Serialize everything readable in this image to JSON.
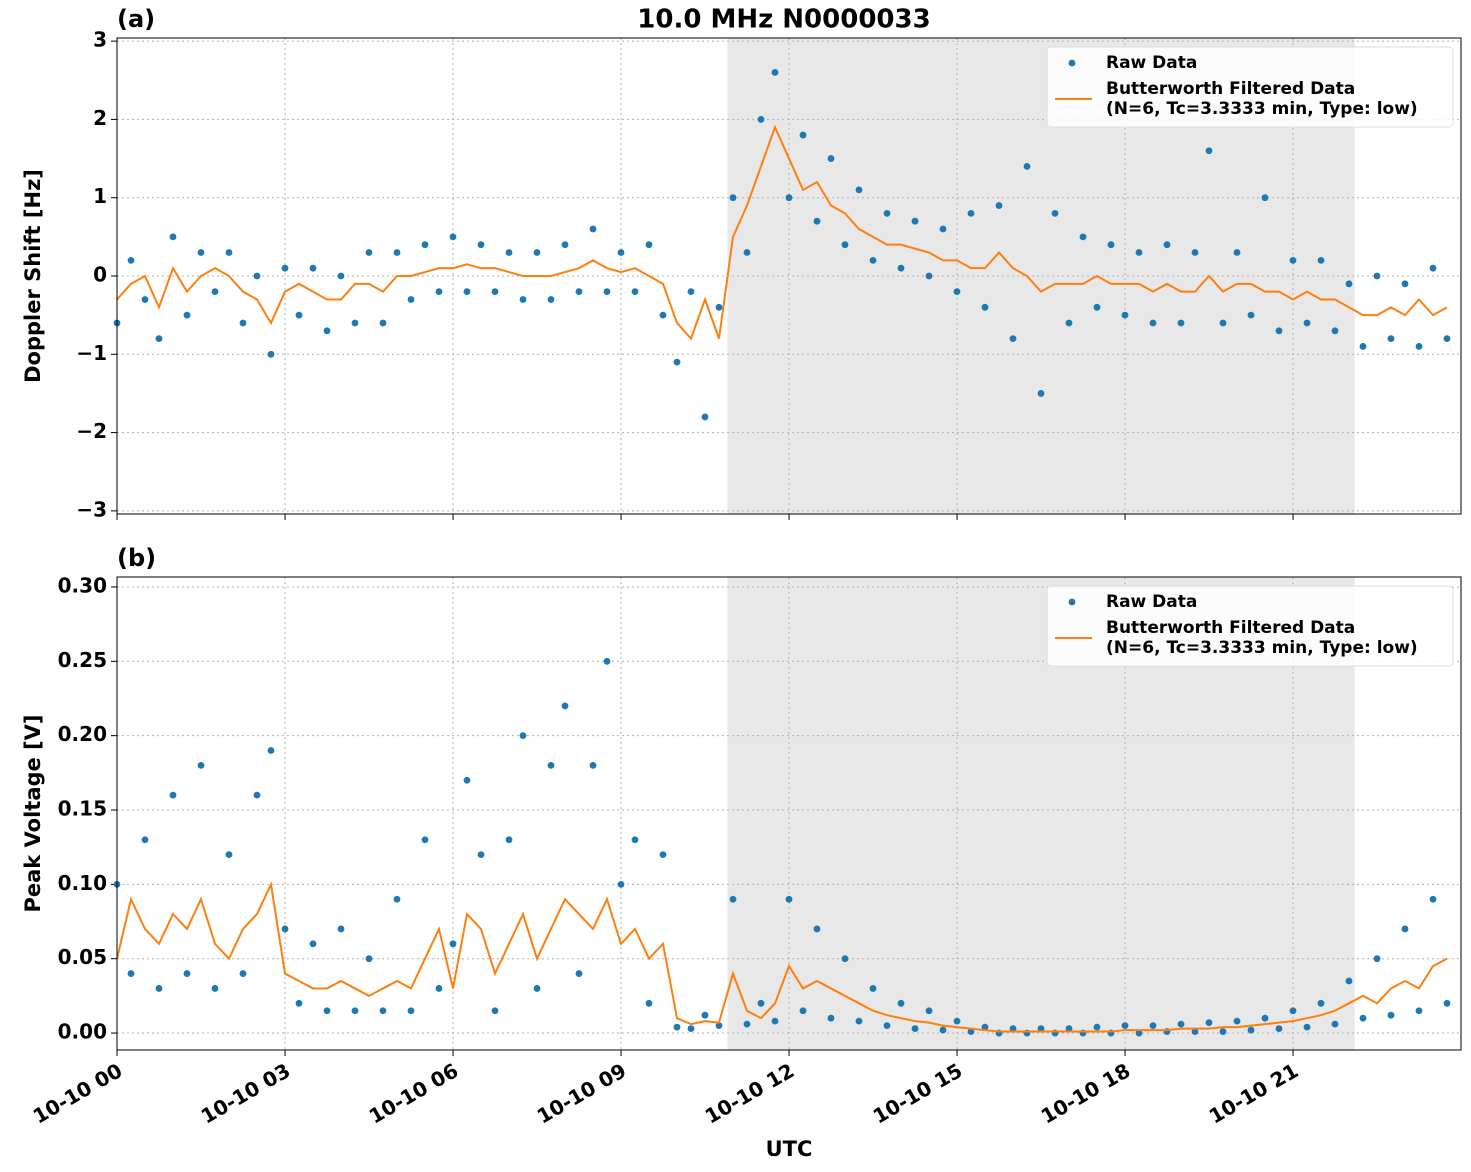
{
  "chart_data": [
    {
      "type": "line",
      "title": "10.0 MHz N0000033",
      "panel_label": "(a)",
      "ylabel": "Doppler Shift [Hz]",
      "xlim": [
        0,
        24
      ],
      "xticks": [
        0,
        3,
        6,
        9,
        12,
        15,
        18,
        21
      ],
      "xticklabels": false,
      "ylim": [
        -3.04,
        3.04
      ],
      "yticks": [
        {
          "value": -3,
          "label": "−3"
        },
        {
          "value": -2,
          "label": "−2"
        },
        {
          "value": -1,
          "label": "−1"
        },
        0,
        1,
        2,
        3
      ],
      "grid": true,
      "shaded_span": [
        10.9,
        22.1
      ],
      "legend": "upper right",
      "x": [
        0,
        0.25,
        0.5,
        0.75,
        1,
        1.25,
        1.5,
        1.75,
        2,
        2.25,
        2.5,
        2.75,
        3,
        3.25,
        3.5,
        3.75,
        4,
        4.25,
        4.5,
        4.75,
        5,
        5.25,
        5.5,
        5.75,
        6,
        6.25,
        6.5,
        6.75,
        7,
        7.25,
        7.5,
        7.75,
        8,
        8.25,
        8.5,
        8.75,
        9,
        9.25,
        9.5,
        9.75,
        10,
        10.25,
        10.5,
        10.75,
        11,
        11.25,
        11.5,
        11.75,
        12,
        12.25,
        12.5,
        12.75,
        13,
        13.25,
        13.5,
        13.75,
        14,
        14.25,
        14.5,
        14.75,
        15,
        15.25,
        15.5,
        15.75,
        16,
        16.25,
        16.5,
        16.75,
        17,
        17.25,
        17.5,
        17.75,
        18,
        18.25,
        18.5,
        18.75,
        19,
        19.25,
        19.5,
        19.75,
        20,
        20.25,
        20.5,
        20.75,
        21,
        21.25,
        21.5,
        21.75,
        22,
        22.25,
        22.5,
        22.75,
        23,
        23.25,
        23.5,
        23.75
      ],
      "series": [
        {
          "name": "Raw Data",
          "kind": "scatter",
          "color": "#1f77b4",
          "values": [
            -0.6,
            0.2,
            -0.3,
            -0.8,
            0.5,
            -0.5,
            0.3,
            -0.2,
            0.3,
            -0.6,
            0,
            -1.0,
            0.1,
            -0.5,
            0.1,
            -0.7,
            0,
            -0.6,
            0.3,
            -0.6,
            0.3,
            -0.3,
            0.4,
            -0.2,
            0.5,
            -0.2,
            0.4,
            -0.2,
            0.3,
            -0.3,
            0.3,
            -0.3,
            0.4,
            -0.2,
            0.6,
            -0.2,
            0.3,
            -0.2,
            0.4,
            -0.5,
            -1.1,
            -0.2,
            -1.8,
            -0.4,
            1.0,
            0.3,
            2.0,
            2.6,
            1.0,
            1.8,
            0.7,
            1.5,
            0.4,
            1.1,
            0.2,
            0.8,
            0.1,
            0.7,
            0,
            0.6,
            -0.2,
            0.8,
            -0.4,
            0.9,
            -0.8,
            1.4,
            -1.5,
            0.8,
            -0.6,
            0.5,
            -0.4,
            0.4,
            -0.5,
            0.3,
            -0.6,
            0.4,
            -0.6,
            0.3,
            1.6,
            -0.6,
            0.3,
            -0.5,
            1.0,
            -0.7,
            0.2,
            -0.6,
            0.2,
            -0.7,
            -0.1,
            -0.9,
            0,
            -0.8,
            -0.1,
            -0.9,
            0.1,
            -0.8
          ]
        },
        {
          "name": "Butterworth Filtered Data\n(N=6, Tc=3.3333 min, Type: low)",
          "kind": "line",
          "color": "#ff7f0e",
          "values": [
            -0.3,
            -0.1,
            0,
            -0.4,
            0.1,
            -0.2,
            0,
            0.1,
            0,
            -0.2,
            -0.3,
            -0.6,
            -0.2,
            -0.1,
            -0.2,
            -0.3,
            -0.3,
            -0.1,
            -0.1,
            -0.2,
            0,
            0,
            0.05,
            0.1,
            0.1,
            0.15,
            0.1,
            0.1,
            0.05,
            0,
            0,
            0,
            0.05,
            0.1,
            0.2,
            0.1,
            0.05,
            0.1,
            0,
            -0.1,
            -0.6,
            -0.8,
            -0.3,
            -0.8,
            0.5,
            0.9,
            1.4,
            1.9,
            1.5,
            1.1,
            1.2,
            0.9,
            0.8,
            0.6,
            0.5,
            0.4,
            0.4,
            0.35,
            0.3,
            0.2,
            0.2,
            0.1,
            0.1,
            0.3,
            0.1,
            0,
            -0.2,
            -0.1,
            -0.1,
            -0.1,
            0,
            -0.1,
            -0.1,
            -0.1,
            -0.2,
            -0.1,
            -0.2,
            -0.2,
            0,
            -0.2,
            -0.1,
            -0.1,
            -0.2,
            -0.2,
            -0.3,
            -0.2,
            -0.3,
            -0.3,
            -0.4,
            -0.5,
            -0.5,
            -0.4,
            -0.5,
            -0.3,
            -0.5,
            -0.4
          ]
        }
      ]
    },
    {
      "type": "line",
      "panel_label": "(b)",
      "ylabel": "Peak Voltage [V]",
      "xlabel": "UTC",
      "xlim": [
        0,
        24
      ],
      "xticks": [
        {
          "value": 0,
          "label": "10-10 00"
        },
        {
          "value": 3,
          "label": "10-10 03"
        },
        {
          "value": 6,
          "label": "10-10 06"
        },
        {
          "value": 9,
          "label": "10-10 09"
        },
        {
          "value": 12,
          "label": "10-10 12"
        },
        {
          "value": 15,
          "label": "10-10 15"
        },
        {
          "value": 18,
          "label": "10-10 18"
        },
        {
          "value": 21,
          "label": "10-10 21"
        }
      ],
      "xticklabels": true,
      "ylim": [
        -0.0114,
        0.3067
      ],
      "yticks": [
        {
          "value": 0,
          "label": "0.00"
        },
        0.05,
        {
          "value": 0.1,
          "label": "0.10"
        },
        0.15,
        {
          "value": 0.2,
          "label": "0.20"
        },
        0.25,
        {
          "value": 0.3,
          "label": "0.30"
        }
      ],
      "grid": true,
      "shaded_span": [
        10.9,
        22.1
      ],
      "legend": "upper right",
      "x": [
        0,
        0.25,
        0.5,
        0.75,
        1,
        1.25,
        1.5,
        1.75,
        2,
        2.25,
        2.5,
        2.75,
        3,
        3.25,
        3.5,
        3.75,
        4,
        4.25,
        4.5,
        4.75,
        5,
        5.25,
        5.5,
        5.75,
        6,
        6.25,
        6.5,
        6.75,
        7,
        7.25,
        7.5,
        7.75,
        8,
        8.25,
        8.5,
        8.75,
        9,
        9.25,
        9.5,
        9.75,
        10,
        10.25,
        10.5,
        10.75,
        11,
        11.25,
        11.5,
        11.75,
        12,
        12.25,
        12.5,
        12.75,
        13,
        13.25,
        13.5,
        13.75,
        14,
        14.25,
        14.5,
        14.75,
        15,
        15.25,
        15.5,
        15.75,
        16,
        16.25,
        16.5,
        16.75,
        17,
        17.25,
        17.5,
        17.75,
        18,
        18.25,
        18.5,
        18.75,
        19,
        19.25,
        19.5,
        19.75,
        20,
        20.25,
        20.5,
        20.75,
        21,
        21.25,
        21.5,
        21.75,
        22,
        22.25,
        22.5,
        22.75,
        23,
        23.25,
        23.5,
        23.75
      ],
      "series": [
        {
          "name": "Raw Data",
          "kind": "scatter",
          "color": "#1f77b4",
          "values": [
            0.1,
            0.04,
            0.13,
            0.03,
            0.16,
            0.04,
            0.18,
            0.03,
            0.12,
            0.04,
            0.16,
            0.19,
            0.07,
            0.02,
            0.06,
            0.015,
            0.07,
            0.015,
            0.05,
            0.015,
            0.09,
            0.015,
            0.13,
            0.03,
            0.06,
            0.17,
            0.12,
            0.015,
            0.13,
            0.2,
            0.03,
            0.18,
            0.22,
            0.04,
            0.18,
            0.25,
            0.1,
            0.13,
            0.02,
            0.12,
            0.004,
            0.003,
            0.012,
            0.005,
            0.09,
            0.006,
            0.02,
            0.008,
            0.09,
            0.015,
            0.07,
            0.01,
            0.05,
            0.008,
            0.03,
            0.005,
            0.02,
            0.003,
            0.015,
            0.002,
            0.008,
            0.001,
            0.004,
            0,
            0.003,
            0,
            0.003,
            0,
            0.003,
            0,
            0.004,
            0,
            0.005,
            0,
            0.005,
            0.001,
            0.006,
            0.001,
            0.007,
            0.001,
            0.008,
            0.002,
            0.01,
            0.003,
            0.015,
            0.004,
            0.02,
            0.006,
            0.035,
            0.01,
            0.05,
            0.012,
            0.07,
            0.015,
            0.09,
            0.02
          ]
        },
        {
          "name": "Butterworth Filtered Data\n(N=6, Tc=3.3333 min, Type: low)",
          "kind": "line",
          "color": "#ff7f0e",
          "values": [
            0.05,
            0.09,
            0.07,
            0.06,
            0.08,
            0.07,
            0.09,
            0.06,
            0.05,
            0.07,
            0.08,
            0.1,
            0.04,
            0.035,
            0.03,
            0.03,
            0.035,
            0.03,
            0.025,
            0.03,
            0.035,
            0.03,
            0.05,
            0.07,
            0.03,
            0.08,
            0.07,
            0.04,
            0.06,
            0.08,
            0.05,
            0.07,
            0.09,
            0.08,
            0.07,
            0.09,
            0.06,
            0.07,
            0.05,
            0.06,
            0.01,
            0.006,
            0.008,
            0.007,
            0.04,
            0.015,
            0.01,
            0.02,
            0.045,
            0.03,
            0.035,
            0.03,
            0.025,
            0.02,
            0.015,
            0.012,
            0.01,
            0.008,
            0.007,
            0.005,
            0.004,
            0.003,
            0.002,
            0.001,
            0.001,
            0.001,
            0.001,
            0.001,
            0.001,
            0.001,
            0.001,
            0.001,
            0.002,
            0.002,
            0.002,
            0.002,
            0.003,
            0.003,
            0.003,
            0.004,
            0.004,
            0.005,
            0.006,
            0.007,
            0.008,
            0.01,
            0.012,
            0.015,
            0.02,
            0.025,
            0.02,
            0.03,
            0.035,
            0.03,
            0.045,
            0.05
          ]
        }
      ]
    }
  ]
}
